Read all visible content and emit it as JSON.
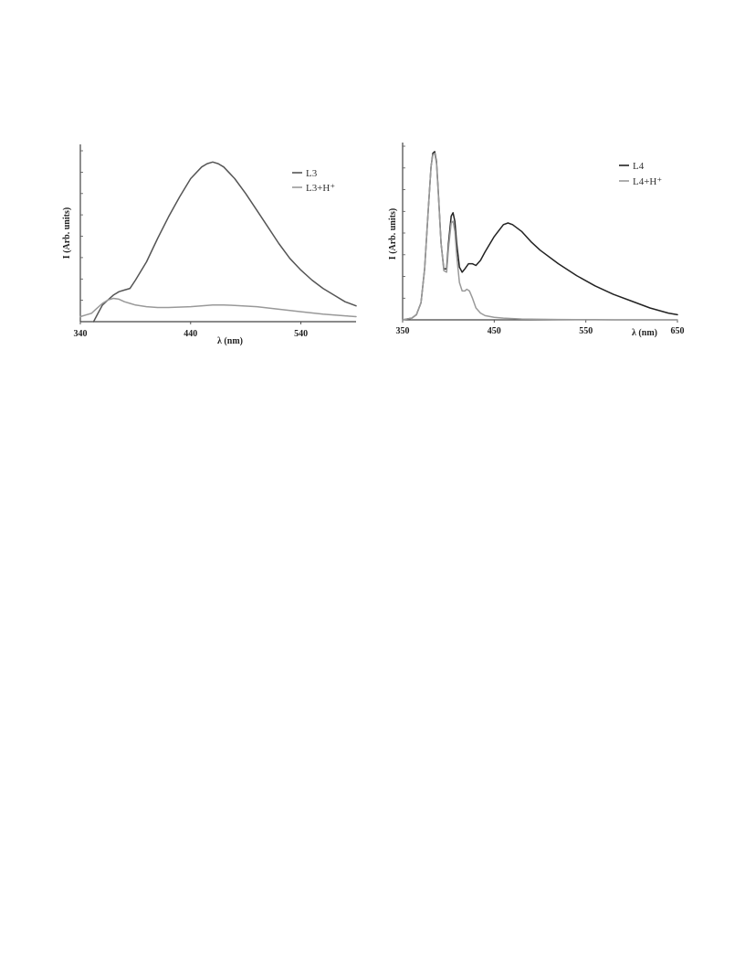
{
  "chart_data": [
    {
      "type": "line",
      "xlabel": "λ (nm)",
      "ylabel": "I (Arb. units)",
      "xlim": [
        340,
        590
      ],
      "ylim": [
        0,
        1
      ],
      "xticks": [
        340,
        440,
        540
      ],
      "xtick_labels": [
        "340",
        "440",
        "540"
      ],
      "legend_position": "top-right",
      "series": [
        {
          "name": "L3",
          "color": "#555555",
          "x": [
            352,
            356,
            360,
            365,
            370,
            375,
            380,
            385,
            390,
            400,
            410,
            420,
            430,
            440,
            450,
            455,
            460,
            465,
            470,
            480,
            490,
            500,
            510,
            520,
            530,
            540,
            550,
            560,
            570,
            580,
            590
          ],
          "y": [
            0.0,
            0.05,
            0.1,
            0.13,
            0.16,
            0.18,
            0.19,
            0.2,
            0.25,
            0.36,
            0.5,
            0.63,
            0.75,
            0.86,
            0.93,
            0.95,
            0.96,
            0.95,
            0.93,
            0.86,
            0.77,
            0.67,
            0.57,
            0.47,
            0.38,
            0.31,
            0.25,
            0.2,
            0.16,
            0.12,
            0.095
          ]
        },
        {
          "name": "L3+H⁺",
          "color": "#999999",
          "x": [
            340,
            345,
            350,
            355,
            360,
            365,
            370,
            375,
            380,
            385,
            390,
            400,
            410,
            420,
            440,
            460,
            470,
            480,
            500,
            520,
            540,
            560,
            580,
            590
          ],
          "y": [
            0.03,
            0.04,
            0.05,
            0.08,
            0.11,
            0.13,
            0.14,
            0.135,
            0.12,
            0.11,
            0.1,
            0.09,
            0.085,
            0.085,
            0.09,
            0.1,
            0.1,
            0.098,
            0.09,
            0.075,
            0.06,
            0.045,
            0.035,
            0.03
          ]
        }
      ]
    },
    {
      "type": "line",
      "xlabel": "λ (nm)",
      "ylabel": "I (Arb. units)",
      "xlim": [
        350,
        650
      ],
      "ylim": [
        0,
        1
      ],
      "xticks": [
        350,
        450,
        550,
        650
      ],
      "xtick_labels": [
        "350",
        "450",
        "550",
        "650"
      ],
      "legend_position": "top-right",
      "series": [
        {
          "name": "L4",
          "color": "#222222",
          "x": [
            350,
            360,
            365,
            370,
            374,
            378,
            381,
            383,
            385,
            387,
            389,
            392,
            395,
            398,
            400,
            403,
            405,
            407,
            409,
            412,
            415,
            418,
            422,
            426,
            430,
            435,
            440,
            450,
            460,
            465,
            470,
            480,
            490,
            500,
            520,
            540,
            560,
            580,
            600,
            620,
            640,
            650
          ],
          "y": [
            0.0,
            0.01,
            0.03,
            0.1,
            0.3,
            0.65,
            0.9,
            0.98,
            0.99,
            0.93,
            0.75,
            0.45,
            0.3,
            0.3,
            0.45,
            0.61,
            0.63,
            0.58,
            0.45,
            0.31,
            0.28,
            0.3,
            0.33,
            0.33,
            0.32,
            0.35,
            0.4,
            0.49,
            0.56,
            0.57,
            0.56,
            0.52,
            0.46,
            0.41,
            0.33,
            0.26,
            0.2,
            0.15,
            0.11,
            0.07,
            0.04,
            0.03
          ]
        },
        {
          "name": "L4+H⁺",
          "color": "#9a9a9a",
          "x": [
            350,
            360,
            365,
            370,
            374,
            378,
            381,
            383,
            385,
            387,
            389,
            392,
            395,
            398,
            400,
            403,
            405,
            407,
            409,
            412,
            415,
            418,
            420,
            423,
            426,
            430,
            435,
            440,
            450,
            460,
            480,
            500,
            520,
            540,
            560,
            580,
            600,
            620,
            650
          ],
          "y": [
            0.0,
            0.01,
            0.03,
            0.1,
            0.3,
            0.65,
            0.9,
            0.97,
            0.98,
            0.92,
            0.74,
            0.45,
            0.29,
            0.28,
            0.42,
            0.57,
            0.58,
            0.52,
            0.38,
            0.22,
            0.17,
            0.17,
            0.18,
            0.17,
            0.13,
            0.07,
            0.04,
            0.025,
            0.015,
            0.01,
            0.005,
            0.003,
            0.002,
            0.001,
            0.001,
            0.0,
            0.0,
            0.0,
            0.0
          ]
        }
      ]
    }
  ]
}
